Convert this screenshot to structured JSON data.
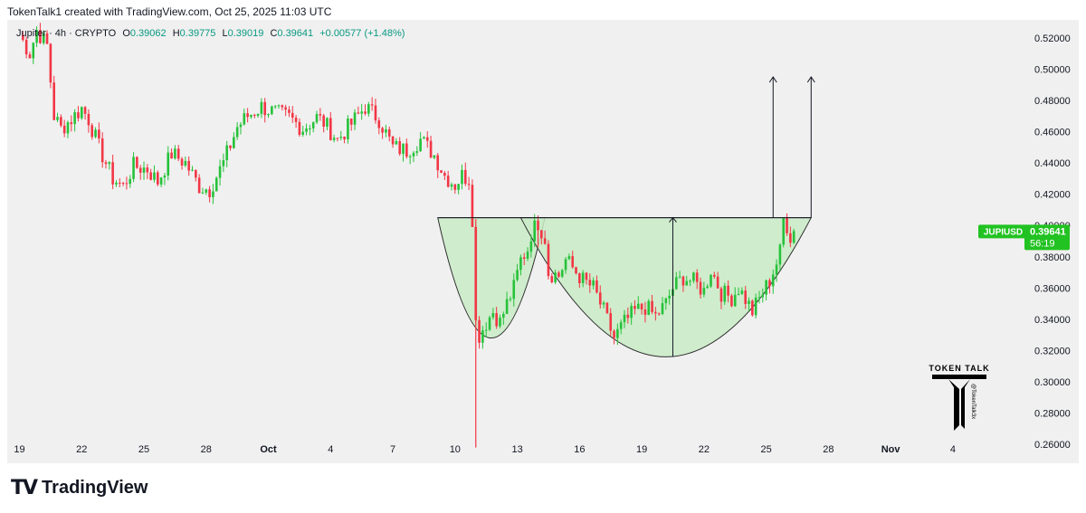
{
  "header": {
    "credit": "TokenTalk1 created with TradingView.com, Oct 25, 2025 11:03 UTC"
  },
  "legend": {
    "symbol": "Jupiter · 4h · CRYPTO",
    "o_label": "O",
    "o": "0.39062",
    "h_label": "H",
    "h": "0.39775",
    "l_label": "L",
    "l": "0.39019",
    "c_label": "C",
    "c": "0.39641",
    "change": "+0.00577 (+1.48%)"
  },
  "price_tag": {
    "symbol": "JUPIUSD",
    "price": "0.39641",
    "countdown": "56:19"
  },
  "watermark": {
    "title": "TOKEN TALK",
    "handle": "@TokenTalk3x"
  },
  "footer": {
    "brand": "TradingView",
    "logo_mark": "TV"
  },
  "colors": {
    "up": "#22ab94",
    "up_bright": "#26c23a",
    "down": "#f23645",
    "shape_fill": "#c9ebc6",
    "price_tag": "#22c222",
    "bg": "#f0f0f0",
    "grid_text": "#131722"
  },
  "chart_data": {
    "type": "candlestick",
    "interval": "4h",
    "ylim": [
      0.25,
      0.53
    ],
    "y_ticks": [
      "0.52000",
      "0.50000",
      "0.48000",
      "0.46000",
      "0.44000",
      "0.42000",
      "0.40000",
      "0.38000",
      "0.36000",
      "0.34000",
      "0.32000",
      "0.30000",
      "0.28000",
      "0.26000"
    ],
    "x_ticks": [
      "19",
      "22",
      "25",
      "28",
      "Oct",
      "4",
      "7",
      "10",
      "13",
      "16",
      "19",
      "22",
      "25",
      "28",
      "Nov",
      "4"
    ],
    "last_price": 0.39641,
    "anchors": [
      [
        0,
        0.522
      ],
      [
        3,
        0.51
      ],
      [
        5,
        0.525
      ],
      [
        8,
        0.515
      ],
      [
        10,
        0.47
      ],
      [
        12,
        0.462
      ],
      [
        15,
        0.468
      ],
      [
        18,
        0.475
      ],
      [
        20,
        0.468
      ],
      [
        23,
        0.45
      ],
      [
        27,
        0.43
      ],
      [
        30,
        0.425
      ],
      [
        33,
        0.438
      ],
      [
        37,
        0.436
      ],
      [
        40,
        0.428
      ],
      [
        44,
        0.446
      ],
      [
        48,
        0.44
      ],
      [
        52,
        0.425
      ],
      [
        55,
        0.423
      ],
      [
        59,
        0.44
      ],
      [
        63,
        0.463
      ],
      [
        66,
        0.47
      ],
      [
        70,
        0.476
      ],
      [
        74,
        0.472
      ],
      [
        78,
        0.469
      ],
      [
        82,
        0.462
      ],
      [
        86,
        0.469
      ],
      [
        88,
        0.466
      ],
      [
        92,
        0.455
      ],
      [
        96,
        0.465
      ],
      [
        100,
        0.476
      ],
      [
        104,
        0.468
      ],
      [
        108,
        0.45
      ],
      [
        112,
        0.448
      ],
      [
        116,
        0.455
      ],
      [
        120,
        0.445
      ],
      [
        123,
        0.432
      ],
      [
        126,
        0.426
      ],
      [
        128,
        0.432
      ],
      [
        130,
        0.43
      ],
      [
        131,
        0.405
      ],
      [
        132,
        0.338
      ],
      [
        133,
        0.33
      ],
      [
        135,
        0.338
      ],
      [
        137,
        0.345
      ],
      [
        139,
        0.338
      ],
      [
        141,
        0.35
      ],
      [
        143,
        0.36
      ],
      [
        145,
        0.378
      ],
      [
        147,
        0.385
      ],
      [
        148,
        0.395
      ],
      [
        150,
        0.402
      ],
      [
        152,
        0.392
      ],
      [
        153,
        0.37
      ],
      [
        156,
        0.368
      ],
      [
        158,
        0.378
      ],
      [
        160,
        0.373
      ],
      [
        163,
        0.365
      ],
      [
        166,
        0.36
      ],
      [
        169,
        0.345
      ],
      [
        172,
        0.328
      ],
      [
        175,
        0.338
      ],
      [
        178,
        0.345
      ],
      [
        181,
        0.348
      ],
      [
        184,
        0.342
      ],
      [
        187,
        0.35
      ],
      [
        189,
        0.36
      ],
      [
        192,
        0.367
      ],
      [
        195,
        0.364
      ],
      [
        198,
        0.358
      ],
      [
        200,
        0.372
      ],
      [
        203,
        0.357
      ],
      [
        206,
        0.354
      ],
      [
        208,
        0.36
      ],
      [
        210,
        0.353
      ],
      [
        212,
        0.345
      ],
      [
        215,
        0.357
      ],
      [
        217,
        0.365
      ],
      [
        219,
        0.376
      ],
      [
        220,
        0.383
      ],
      [
        221,
        0.404
      ],
      [
        222,
        0.4
      ],
      [
        223,
        0.393
      ],
      [
        224,
        0.396
      ]
    ],
    "spikes": [
      {
        "x": 132,
        "low": 0.258,
        "high": 0.404
      },
      {
        "x": 150,
        "low": 0.386,
        "high": 0.404
      }
    ],
    "annotations": {
      "neckline_price": 0.405,
      "cup_handle_1": {
        "x_start": 121,
        "x_end": 152,
        "bottom": 0.328
      },
      "cup_main": {
        "x_start": 145,
        "x_end": 229,
        "bottom": 0.316
      },
      "cup_depth_line_x": 189,
      "target_price": 0.495,
      "target_arrows_x": [
        218,
        229
      ]
    }
  }
}
